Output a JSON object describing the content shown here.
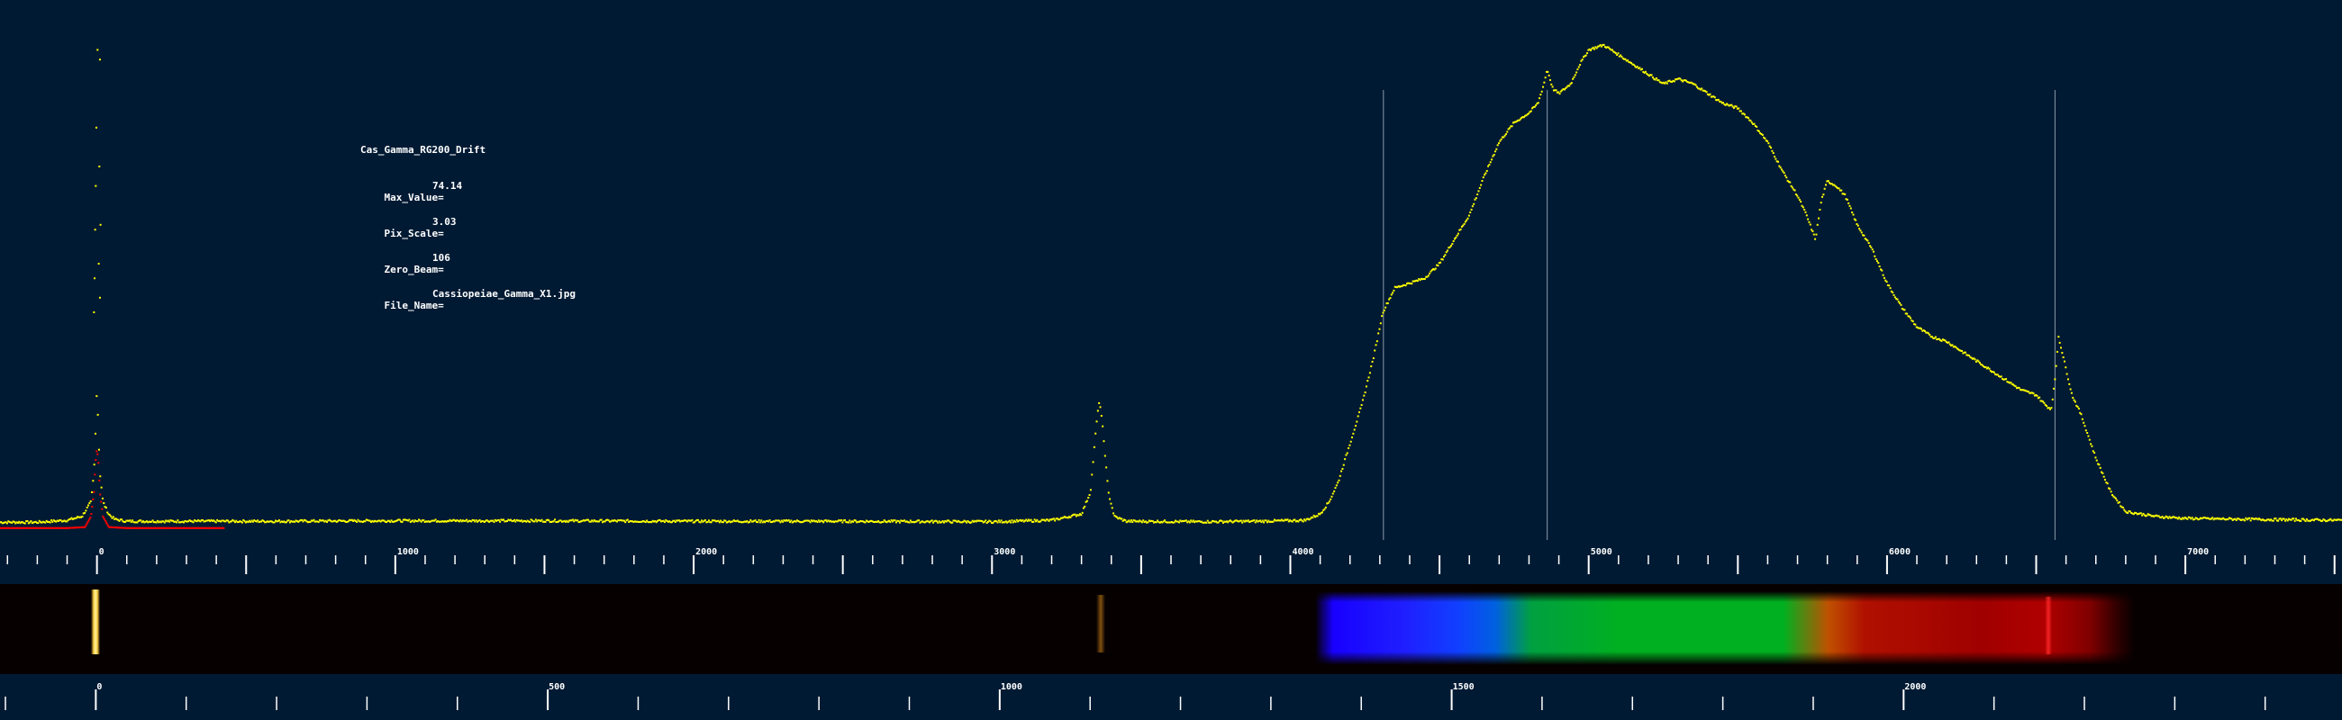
{
  "info": {
    "title": "Cas_Gamma_RG200_Drift",
    "rows": [
      {
        "label": "Max_Value=",
        "value": "74.14"
      },
      {
        "label": "Pix_Scale=",
        "value": "3.03"
      },
      {
        "label": "Zero_Beam=",
        "value": "106"
      },
      {
        "label": "File_Name=",
        "value": "Cassiopeiae_Gamma_X1.jpg"
      }
    ]
  },
  "colors": {
    "background": "#011a33",
    "profile": "#ffff00",
    "zero_profile": "#ff0000",
    "marker_line": "#8a9aaa",
    "text": "#ffffff"
  },
  "chart_data": {
    "type": "scatter",
    "title": "",
    "xlabel": "",
    "ylabel": "",
    "grid": false,
    "upper_axis": {
      "range": [
        -325,
        7525
      ],
      "labels": [
        {
          "v": 0,
          "t": "0"
        },
        {
          "v": 1000,
          "t": "1000"
        },
        {
          "v": 2000,
          "t": "2000"
        },
        {
          "v": 3000,
          "t": "3000"
        },
        {
          "v": 4000,
          "t": "4000"
        },
        {
          "v": 5000,
          "t": "5000"
        },
        {
          "v": 6000,
          "t": "6000"
        },
        {
          "v": 7000,
          "t": "7000"
        }
      ],
      "minor_step": 100,
      "major_step": 500
    },
    "lower_axis": {
      "range": [
        -106,
        2485
      ],
      "labels": [
        {
          "v": 0,
          "t": "0"
        },
        {
          "v": 500,
          "t": "500"
        },
        {
          "v": 1000,
          "t": "1000"
        },
        {
          "v": 1500,
          "t": "1500"
        },
        {
          "v": 2000,
          "t": "2000"
        }
      ],
      "minor_step": 100,
      "major_step": 500
    },
    "y_range": [
      0,
      100
    ],
    "markers": [
      4312,
      4861,
      6563
    ],
    "series": [
      {
        "points": [
          [
            -325,
            1.8
          ],
          [
            -200,
            1.8
          ],
          [
            -100,
            2.2
          ],
          [
            -50,
            3.0
          ],
          [
            -20,
            6
          ],
          [
            -10,
            12
          ],
          [
            -5,
            20
          ],
          [
            0,
            30
          ],
          [
            5,
            20
          ],
          [
            10,
            12
          ],
          [
            20,
            6
          ],
          [
            40,
            3.4
          ],
          [
            60,
            2.4
          ],
          [
            100,
            2.0
          ],
          [
            300,
            2.0
          ],
          [
            600,
            2.0
          ],
          [
            1000,
            2.1
          ],
          [
            1500,
            2.1
          ],
          [
            2000,
            2.0
          ],
          [
            2500,
            2.0
          ],
          [
            3000,
            1.9
          ],
          [
            3200,
            2.2
          ],
          [
            3300,
            3.5
          ],
          [
            3330,
            8
          ],
          [
            3350,
            22
          ],
          [
            3360,
            27
          ],
          [
            3370,
            22
          ],
          [
            3390,
            8
          ],
          [
            3410,
            3
          ],
          [
            3450,
            2.0
          ],
          [
            3700,
            1.9
          ],
          [
            3900,
            2.0
          ],
          [
            4050,
            2.2
          ],
          [
            4100,
            3.5
          ],
          [
            4130,
            6
          ],
          [
            4160,
            10
          ],
          [
            4200,
            18
          ],
          [
            4240,
            26
          ],
          [
            4280,
            36
          ],
          [
            4310,
            45
          ],
          [
            4350,
            50
          ],
          [
            4400,
            51
          ],
          [
            4450,
            52
          ],
          [
            4500,
            55
          ],
          [
            4550,
            60
          ],
          [
            4600,
            65
          ],
          [
            4650,
            73
          ],
          [
            4700,
            80
          ],
          [
            4750,
            84
          ],
          [
            4800,
            86
          ],
          [
            4830,
            88
          ],
          [
            4850,
            92
          ],
          [
            4861,
            95
          ],
          [
            4880,
            91
          ],
          [
            4900,
            90
          ],
          [
            4940,
            92
          ],
          [
            4970,
            96
          ],
          [
            5000,
            99
          ],
          [
            5050,
            100
          ],
          [
            5100,
            98
          ],
          [
            5150,
            96
          ],
          [
            5200,
            94
          ],
          [
            5250,
            92
          ],
          [
            5300,
            93
          ],
          [
            5350,
            92
          ],
          [
            5400,
            90
          ],
          [
            5450,
            88
          ],
          [
            5500,
            87
          ],
          [
            5550,
            84
          ],
          [
            5600,
            80
          ],
          [
            5650,
            74
          ],
          [
            5700,
            69
          ],
          [
            5730,
            65
          ],
          [
            5760,
            60
          ],
          [
            5780,
            68
          ],
          [
            5800,
            72
          ],
          [
            5830,
            71
          ],
          [
            5860,
            69
          ],
          [
            5900,
            63
          ],
          [
            5950,
            58
          ],
          [
            6000,
            51
          ],
          [
            6050,
            46
          ],
          [
            6100,
            42
          ],
          [
            6150,
            40
          ],
          [
            6200,
            39
          ],
          [
            6250,
            37
          ],
          [
            6300,
            35
          ],
          [
            6350,
            33
          ],
          [
            6400,
            31
          ],
          [
            6450,
            29
          ],
          [
            6500,
            28
          ],
          [
            6530,
            26
          ],
          [
            6550,
            25
          ],
          [
            6563,
            31
          ],
          [
            6575,
            40
          ],
          [
            6590,
            36
          ],
          [
            6620,
            28
          ],
          [
            6650,
            24
          ],
          [
            6700,
            15
          ],
          [
            6750,
            8
          ],
          [
            6800,
            4
          ],
          [
            6900,
            3
          ],
          [
            7000,
            2.6
          ],
          [
            7200,
            2.4
          ],
          [
            7525,
            2.2
          ]
        ]
      }
    ],
    "zero_series": {
      "points": [
        [
          -325,
          0.6
        ],
        [
          -100,
          0.6
        ],
        [
          -40,
          0.8
        ],
        [
          -20,
          3
        ],
        [
          -10,
          8
        ],
        [
          -5,
          14
        ],
        [
          0,
          17
        ],
        [
          5,
          14
        ],
        [
          10,
          8
        ],
        [
          20,
          3
        ],
        [
          40,
          0.8
        ],
        [
          100,
          0.6
        ],
        [
          425,
          0.6
        ]
      ]
    }
  }
}
